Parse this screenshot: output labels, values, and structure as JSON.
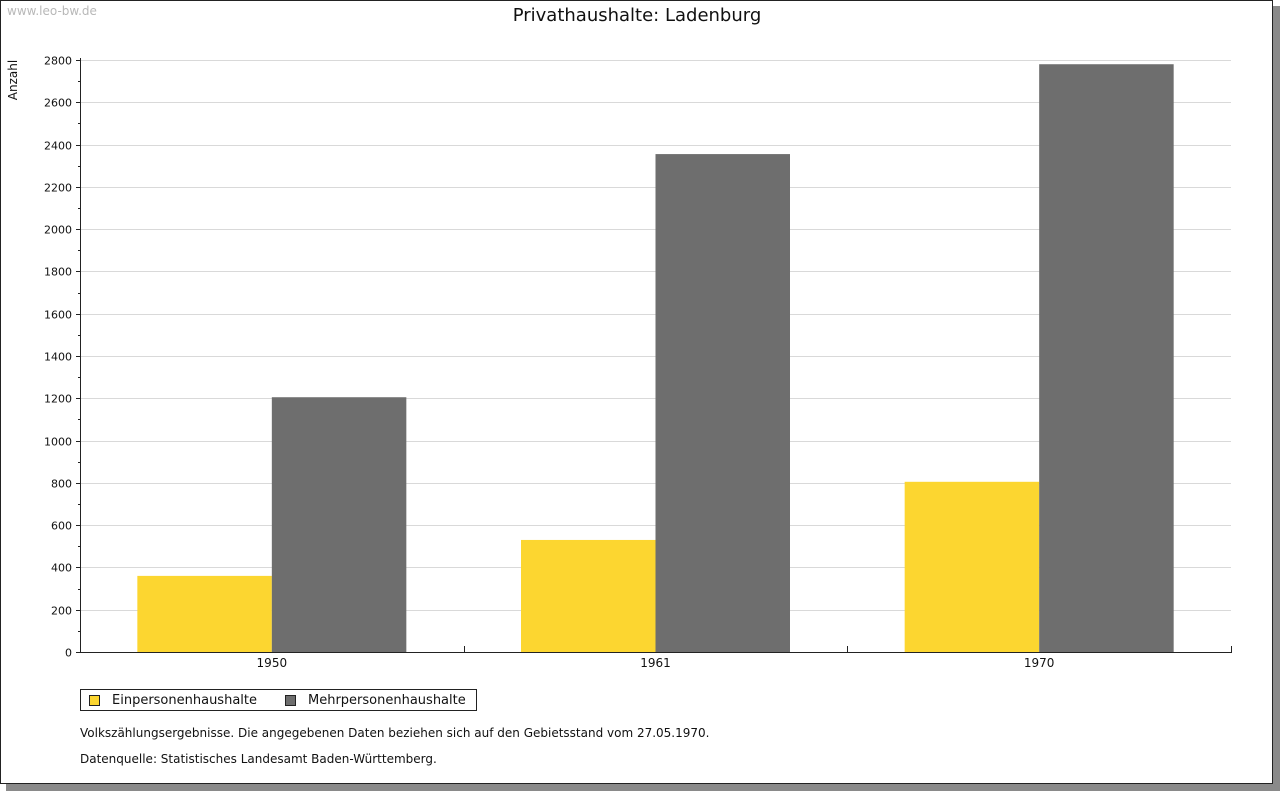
{
  "watermark": "www.leo-bw.de",
  "colors": {
    "einpersonen": "#FCD630",
    "mehrpersonen": "#6E6E6E",
    "grid": "#d9d9d9",
    "axis": "#222222"
  },
  "chart_data": {
    "type": "bar",
    "title": "Privathaushalte: Ladenburg",
    "xlabel": "",
    "ylabel": "Anzahl",
    "categories": [
      "1950",
      "1961",
      "1970"
    ],
    "series": [
      {
        "name": "Einpersonenhaushalte",
        "values": [
          360,
          530,
          805
        ]
      },
      {
        "name": "Mehrpersonenhaushalte",
        "values": [
          1205,
          2355,
          2780
        ]
      }
    ],
    "ylim": [
      0,
      2800
    ],
    "yticks": [
      0,
      200,
      400,
      600,
      800,
      1000,
      1200,
      1400,
      1600,
      1800,
      2000,
      2200,
      2400,
      2600,
      2800
    ],
    "grid": true,
    "legend_position": "bottom-left"
  },
  "footnotes": {
    "line1": "Volkszählungsergebnisse. Die angegebenen Daten beziehen sich auf den Gebietsstand vom 27.05.1970.",
    "line2": "Datenquelle: Statistisches Landesamt Baden-Württemberg."
  }
}
